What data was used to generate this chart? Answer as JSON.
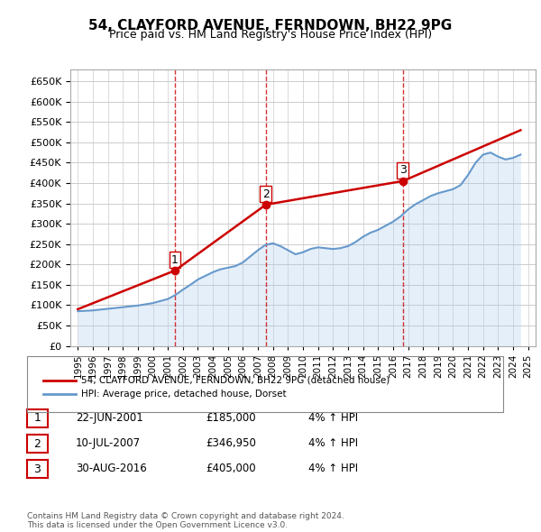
{
  "title": "54, CLAYFORD AVENUE, FERNDOWN, BH22 9PG",
  "subtitle": "Price paid vs. HM Land Registry's House Price Index (HPI)",
  "ylabel_ticks": [
    "£0",
    "£50K",
    "£100K",
    "£150K",
    "£200K",
    "£250K",
    "£300K",
    "£350K",
    "£400K",
    "£450K",
    "£500K",
    "£550K",
    "£600K",
    "£650K"
  ],
  "ylim": [
    0,
    680000
  ],
  "yticks": [
    0,
    50000,
    100000,
    150000,
    200000,
    250000,
    300000,
    350000,
    400000,
    450000,
    500000,
    550000,
    600000,
    650000
  ],
  "sale_color": "#cc0000",
  "hpi_color": "#6699cc",
  "hpi_fill_color": "#aaccee",
  "dashed_color": "#cc0000",
  "background_color": "#ffffff",
  "grid_color": "#cccccc",
  "legend_label_sale": "54, CLAYFORD AVENUE, FERNDOWN, BH22 9PG (detached house)",
  "legend_label_hpi": "HPI: Average price, detached house, Dorset",
  "transactions": [
    {
      "num": 1,
      "date": "22-JUN-2001",
      "price": 185000,
      "hpi_pct": "4%",
      "x_year": 2001.47
    },
    {
      "num": 2,
      "date": "10-JUL-2007",
      "price": 346950,
      "hpi_pct": "4%",
      "x_year": 2007.53
    },
    {
      "num": 3,
      "date": "30-AUG-2016",
      "price": 405000,
      "hpi_pct": "4%",
      "x_year": 2016.66
    }
  ],
  "footnote": "Contains HM Land Registry data © Crown copyright and database right 2024.\nThis data is licensed under the Open Government Licence v3.0.",
  "hpi_years": [
    1995,
    1995.5,
    1996,
    1996.5,
    1997,
    1997.5,
    1998,
    1998.5,
    1999,
    1999.5,
    2000,
    2000.5,
    2001,
    2001.5,
    2002,
    2002.5,
    2003,
    2003.5,
    2004,
    2004.5,
    2005,
    2005.5,
    2006,
    2006.5,
    2007,
    2007.5,
    2008,
    2008.5,
    2009,
    2009.5,
    2010,
    2010.5,
    2011,
    2011.5,
    2012,
    2012.5,
    2013,
    2013.5,
    2014,
    2014.5,
    2015,
    2015.5,
    2016,
    2016.5,
    2017,
    2017.5,
    2018,
    2018.5,
    2019,
    2019.5,
    2020,
    2020.5,
    2021,
    2021.5,
    2022,
    2022.5,
    2023,
    2023.5,
    2024,
    2024.5
  ],
  "hpi_values": [
    85000,
    86000,
    87000,
    89000,
    91000,
    93000,
    95000,
    97000,
    99000,
    102000,
    105000,
    110000,
    115000,
    125000,
    138000,
    150000,
    163000,
    172000,
    181000,
    188000,
    192000,
    196000,
    205000,
    220000,
    235000,
    248000,
    252000,
    245000,
    235000,
    225000,
    230000,
    238000,
    242000,
    240000,
    238000,
    240000,
    245000,
    255000,
    268000,
    278000,
    285000,
    295000,
    305000,
    318000,
    335000,
    348000,
    358000,
    368000,
    375000,
    380000,
    385000,
    395000,
    420000,
    450000,
    470000,
    475000,
    465000,
    458000,
    462000,
    470000
  ],
  "sale_years": [
    1995,
    2001.47,
    2007.53,
    2016.66,
    2024.5
  ],
  "sale_values": [
    90000,
    185000,
    346950,
    405000,
    530000
  ],
  "xtick_years": [
    1995,
    1996,
    1997,
    1998,
    1999,
    2000,
    2001,
    2002,
    2003,
    2004,
    2005,
    2006,
    2007,
    2008,
    2009,
    2010,
    2011,
    2012,
    2013,
    2014,
    2015,
    2016,
    2017,
    2018,
    2019,
    2020,
    2021,
    2022,
    2023,
    2024,
    2025
  ]
}
